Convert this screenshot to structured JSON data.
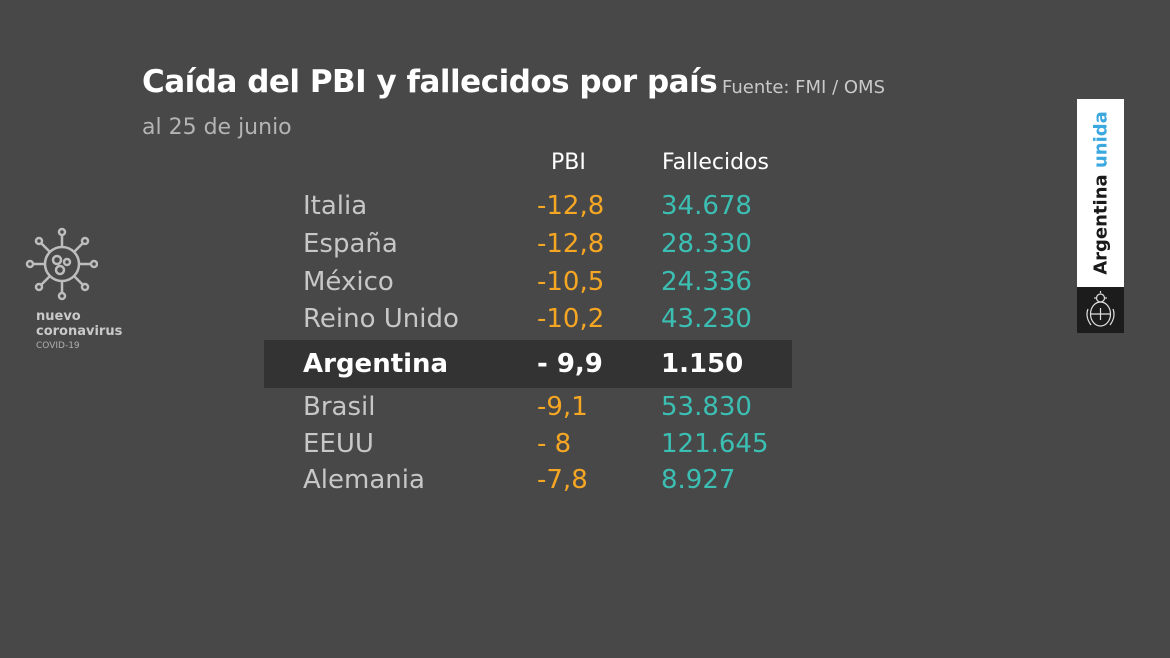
{
  "header": {
    "title": "Caída del PBI y fallecidos por país",
    "source": "Fuente: FMI / OMS",
    "subtitle": "al 25 de junio"
  },
  "columns": {
    "pbi": "PBI",
    "fallecidos": "Fallecidos"
  },
  "rows": [
    {
      "country": "Italia",
      "pbi": "-12,8",
      "fallecidos": "34.678"
    },
    {
      "country": "España",
      "pbi": "-12,8",
      "fallecidos": "28.330"
    },
    {
      "country": "México",
      "pbi": "-10,5",
      "fallecidos": "24.336"
    },
    {
      "country": "Reino Unido",
      "pbi": "-10,2",
      "fallecidos": "43.230"
    },
    {
      "country": "Argentina",
      "pbi": "- 9,9",
      "fallecidos": "1.150",
      "highlight": true
    },
    {
      "country": "Brasil",
      "pbi": "-9,1",
      "fallecidos": "53.830"
    },
    {
      "country": "EEUU",
      "pbi": "- 8",
      "fallecidos": "121.645"
    },
    {
      "country": "Alemania",
      "pbi": "-7,8",
      "fallecidos": "8.927"
    }
  ],
  "virus_logo": {
    "icon": "coronavirus-icon",
    "line1": "nuevo",
    "line2": "coronavirus",
    "line3": "COVID-19"
  },
  "brand": {
    "text": "Argentina",
    "accent_text": "unida",
    "emblem_icon": "coat-of-arms-icon"
  },
  "colors": {
    "background": "#484849",
    "pbi": "#f5a623",
    "fallecidos": "#3cbfb3",
    "highlight_row": "#333334",
    "brand_accent": "#3ba8e0"
  }
}
